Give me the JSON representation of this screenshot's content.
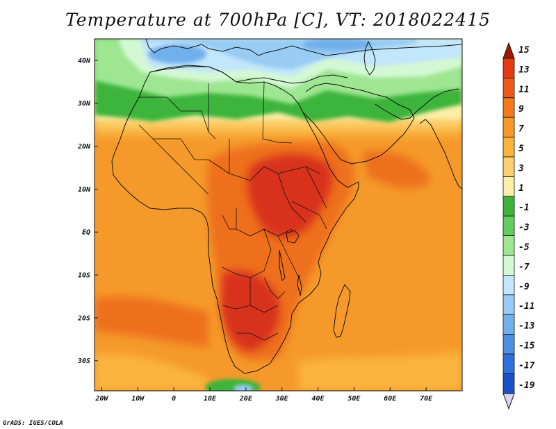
{
  "title": "Temperature at 700hPa [C], VT: 2018022415",
  "credit": "GrADS: IGES/COLA",
  "map": {
    "lon_range": [
      -22,
      80
    ],
    "lat_range": [
      -37,
      45
    ],
    "lat_ticks": [
      {
        "value": 40,
        "label": "40N"
      },
      {
        "value": 30,
        "label": "30N"
      },
      {
        "value": 20,
        "label": "20N"
      },
      {
        "value": 10,
        "label": "10N"
      },
      {
        "value": 0,
        "label": "EQ"
      },
      {
        "value": -10,
        "label": "10S"
      },
      {
        "value": -20,
        "label": "20S"
      },
      {
        "value": -30,
        "label": "30S"
      }
    ],
    "lon_ticks": [
      {
        "value": -20,
        "label": "20W"
      },
      {
        "value": -10,
        "label": "10W"
      },
      {
        "value": 0,
        "label": "0"
      },
      {
        "value": 10,
        "label": "10E"
      },
      {
        "value": 20,
        "label": "20E"
      },
      {
        "value": 30,
        "label": "30E"
      },
      {
        "value": 40,
        "label": "40E"
      },
      {
        "value": 50,
        "label": "50E"
      },
      {
        "value": 60,
        "label": "60E"
      },
      {
        "value": 70,
        "label": "70E"
      }
    ]
  },
  "colorbar": {
    "labels": [
      "15",
      "13",
      "11",
      "9",
      "7",
      "5",
      "3",
      "1",
      "-1",
      "-3",
      "-5",
      "-7",
      "-9",
      "-11",
      "-13",
      "-15",
      "-17",
      "-19"
    ],
    "colors": [
      "#a01800",
      "#e83a10",
      "#f05a18",
      "#f47a1c",
      "#f89a28",
      "#fab43c",
      "#fcd070",
      "#fbeea6",
      "#3cb43a",
      "#62cc5c",
      "#9ee692",
      "#d4f8d4",
      "#c2e6fa",
      "#98ccf4",
      "#72b0ec",
      "#4e90e4",
      "#2e70dc",
      "#1a50c8",
      "#0c30a8",
      "#061a78"
    ],
    "top_arrow_color": "#a01800",
    "bottom_arrow_color": "#d8d4f4"
  },
  "field_colors": {
    "hot": "#d8301a",
    "warm": "#ee6f1e",
    "mid": "#f59a2a",
    "mild": "#fab43c",
    "cool": "#fcd070",
    "pale": "#fbeea6",
    "green": "#3cb43a",
    "lightgreen": "#9ee692",
    "palegreen": "#d4f8d4",
    "paleblue": "#c2e6fa",
    "blue": "#98ccf4",
    "deepblue": "#72b0ec"
  }
}
